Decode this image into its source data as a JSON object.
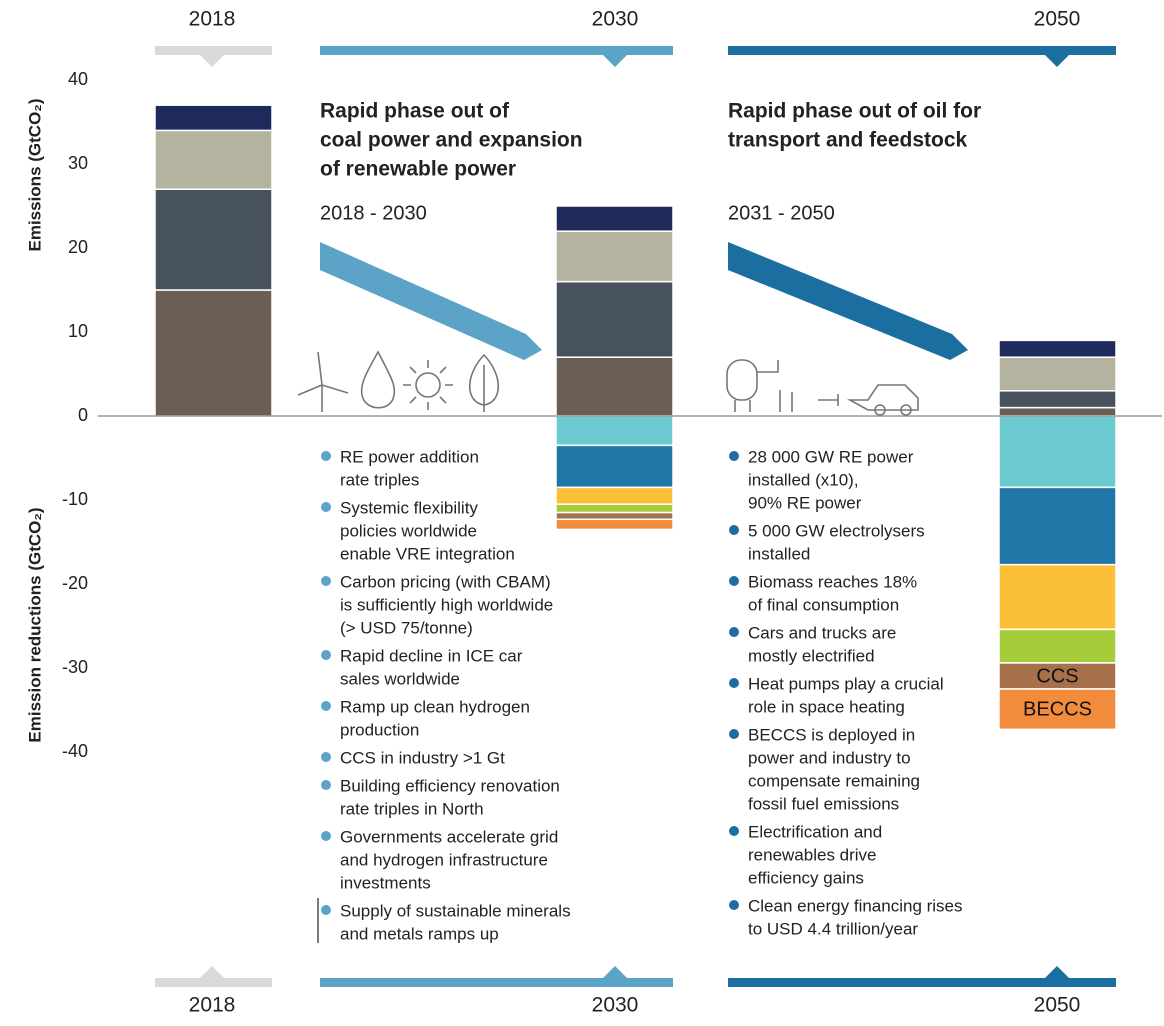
{
  "chart_data": {
    "type": "bar",
    "stacked": true,
    "categories": [
      "2018",
      "2030",
      "2050"
    ],
    "ylabel": "Emissions (GtCO₂)",
    "ylabel_negative": "Emission reductions (GtCO₂)",
    "ylim": [
      -40,
      40
    ],
    "yticks": [
      40,
      30,
      20,
      10,
      0,
      -10,
      -20,
      -30,
      -40
    ],
    "series": [
      {
        "color": "#6b5f55",
        "values": [
          15,
          7,
          1
        ]
      },
      {
        "color": "#47525c",
        "values": [
          12,
          9,
          2
        ]
      },
      {
        "color": "#b3b3a0",
        "values": [
          7,
          6,
          4
        ]
      },
      {
        "color": "#1f2a5c",
        "values": [
          3,
          3,
          2
        ]
      },
      {
        "color": "#6ccbd1",
        "values": [
          null,
          -3.5,
          -8.5
        ]
      },
      {
        "color": "#1f77a8",
        "values": [
          null,
          -5,
          -9.2
        ]
      },
      {
        "color": "#fbbf38",
        "values": [
          null,
          -2,
          -7.7
        ]
      },
      {
        "color": "#a6cc3a",
        "values": [
          null,
          -1,
          -4
        ]
      },
      {
        "color": "#a5704a",
        "values": [
          null,
          -0.8,
          -3.1
        ],
        "label": "CCS"
      },
      {
        "color": "#f28b3c",
        "values": [
          null,
          -1.2,
          -4.8
        ],
        "label": "BECCS"
      }
    ],
    "panels": [
      {
        "title": [
          "Rapid phase out of",
          "coal power and expansion",
          "of renewable power"
        ],
        "period": "2018 - 2030",
        "bullets": [
          [
            "RE power addition",
            "rate  triples"
          ],
          [
            "Systemic flexibility",
            "policies worldwide",
            "enable VRE integration"
          ],
          [
            "Carbon pricing (with CBAM)",
            "is sufficiently high worldwide",
            "(> USD 75/tonne)"
          ],
          [
            "Rapid decline in ICE car",
            "sales worldwide"
          ],
          [
            "Ramp up clean hydrogen",
            "production"
          ],
          [
            "CCS in industry >1 Gt"
          ],
          [
            "Building efficiency renovation",
            "rate triples in North"
          ],
          [
            "Governments accelerate grid",
            "and hydrogen infrastructure",
            "investments"
          ],
          [
            "Supply of sustainable minerals",
            "and metals ramps up"
          ]
        ]
      },
      {
        "title": [
          "Rapid phase out of oil for",
          "transport and feedstock"
        ],
        "period": "2031 - 2050",
        "bullets": [
          [
            "28 000 GW RE power",
            "installed (x10),",
            "90% RE power"
          ],
          [
            "5 000 GW electrolysers",
            "installed"
          ],
          [
            "Biomass reaches 18%",
            "of final consumption"
          ],
          [
            "Cars and trucks are",
            "mostly electrified"
          ],
          [
            "Heat pumps play a crucial",
            "role in space heating"
          ],
          [
            "BECCS is deployed in",
            "power and industry to",
            "compensate remaining",
            "fossil fuel emissions"
          ],
          [
            "Electrification and",
            "renewables drive",
            "efficiency gains"
          ],
          [
            "Clean energy financing rises",
            "to USD 4.4 trillion/year"
          ]
        ]
      }
    ]
  }
}
